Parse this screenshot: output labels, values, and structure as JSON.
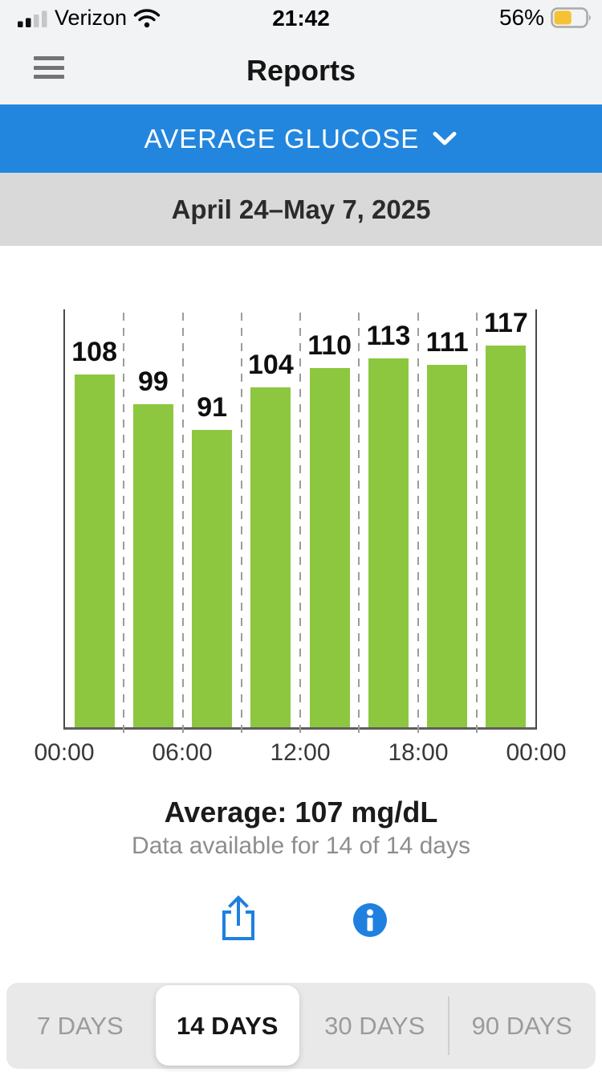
{
  "status_bar": {
    "carrier": "Verizon",
    "time": "21:42",
    "battery_percent": "56%",
    "battery_color": "#f5c235",
    "cellular_icon": "cellular-signal",
    "wifi_icon": "wifi",
    "battery_icon": "battery"
  },
  "header": {
    "title": "Reports",
    "menu_icon": "hamburger-menu"
  },
  "metric_selector": {
    "label": "AVERAGE GLUCOSE",
    "chevron_icon": "chevron-down",
    "accent_color": "#2386de"
  },
  "date_range": {
    "label": "April 24–May 7, 2025"
  },
  "chart_data": {
    "type": "bar",
    "title": "",
    "unit": "mg/dL",
    "values": [
      108,
      99,
      91,
      104,
      110,
      113,
      111,
      117
    ],
    "x_tick_labels": [
      "00:00",
      "06:00",
      "12:00",
      "18:00",
      "00:00"
    ],
    "ylim": [
      0,
      128
    ],
    "bar_color": "#8dc73f",
    "grid": "dashed-vertical",
    "legend": "none",
    "value_labels_shown": true
  },
  "summary": {
    "average": "Average: 107 mg/dL",
    "availability": "Data available for 14 of 14 days"
  },
  "actions": {
    "share_icon": "share",
    "info_icon": "info",
    "icon_color": "#1f80e0"
  },
  "range_tabs": {
    "options": [
      {
        "label": "7 DAYS",
        "selected": false
      },
      {
        "label": "14 DAYS",
        "selected": true
      },
      {
        "label": "30 DAYS",
        "selected": false
      },
      {
        "label": "90 DAYS",
        "selected": false
      }
    ]
  }
}
